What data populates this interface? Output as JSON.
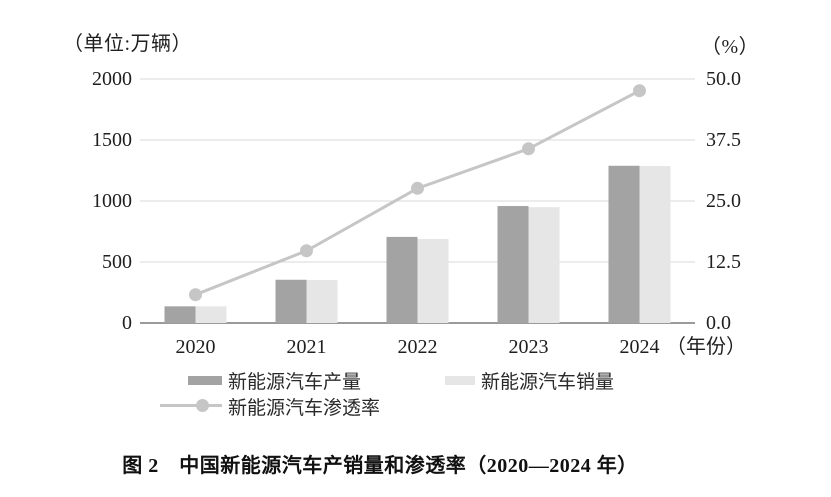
{
  "colors": {
    "production_bar": "#a3a3a3",
    "sales_bar": "#e6e6e6",
    "penetration_line": "#c6c6c6",
    "gridline": "#d9d9d9",
    "baseline": "#9a9a9a",
    "text": "#1f1f1f"
  },
  "chart_data": {
    "type": "bar+line",
    "title": "图 2　中国新能源汽车产销量和渗透率（2020—2024 年）",
    "categories": [
      "2020",
      "2021",
      "2022",
      "2023",
      "2024"
    ],
    "series": [
      {
        "name": "新能源汽车产量",
        "type": "bar",
        "axis": "left",
        "values": [
          136.6,
          354.5,
          705.8,
          958.7,
          1288.8
        ]
      },
      {
        "name": "新能源汽车销量",
        "type": "bar",
        "axis": "left",
        "values": [
          136.7,
          352.1,
          688.7,
          949.5,
          1286.6
        ]
      },
      {
        "name": "新能源汽车渗透率",
        "type": "line",
        "axis": "right",
        "values": [
          5.8,
          14.8,
          27.6,
          35.7,
          47.6
        ]
      }
    ],
    "left_axis": {
      "unit": "（单位:万辆）",
      "ticks": [
        "2000",
        "1500",
        "1000",
        "500",
        "0"
      ],
      "lim": [
        0,
        2000
      ]
    },
    "right_axis": {
      "unit": "（%）",
      "ticks": [
        "50.0",
        "37.5",
        "25.0",
        "12.5",
        "0.0"
      ],
      "lim": [
        0,
        50
      ]
    },
    "x_axis": {
      "unit": "（年份）",
      "labels": [
        "2020",
        "2021",
        "2022",
        "2023",
        "2024"
      ]
    },
    "grid": true,
    "legend_position": "bottom",
    "caption": "图 2　中国新能源汽车产销量和渗透率（2020—2024 年）"
  }
}
